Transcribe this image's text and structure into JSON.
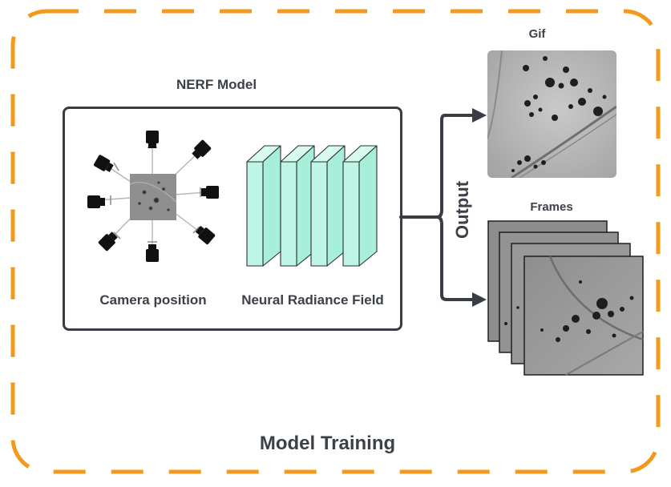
{
  "diagram": {
    "title": "Model Training",
    "model_box": {
      "title": "NERF Model",
      "camera_label": "Camera position",
      "field_label": "Neural Radiance Field"
    },
    "output_label": "Output",
    "outputs": {
      "gif_label": "Gif",
      "frames_label": "Frames"
    },
    "colors": {
      "dashed_border": "#f39a1e",
      "box_border": "#383c44",
      "prism_fill": "#bff5e6",
      "prism_stroke": "#2a2f33",
      "text": "#3c4048",
      "micrograph": "#9a9a9a"
    }
  }
}
